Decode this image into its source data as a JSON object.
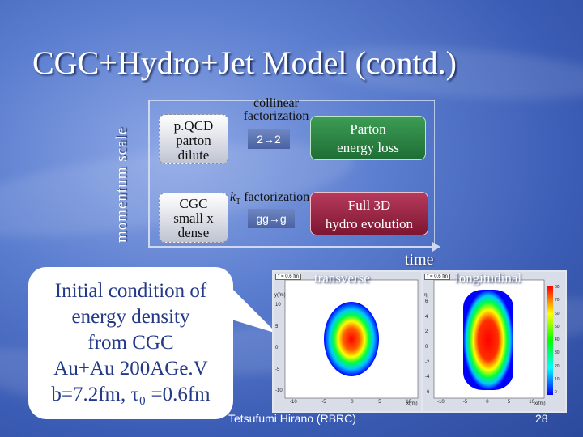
{
  "title": "CGC+Hydro+Jet Model (contd.)",
  "diagram": {
    "y_axis_label": "momentum scale",
    "x_axis_label": "time",
    "pqcd_box": [
      "p.QCD",
      "parton",
      "dilute"
    ],
    "cgc_box": [
      "CGC",
      "small x",
      "dense"
    ],
    "collinear_label": [
      "collinear",
      "factorization"
    ],
    "kt_label_k": "k",
    "kt_label_sub": "T",
    "kt_label_rest": " factorization",
    "process_22": "2→2",
    "process_ggg": "gg→g",
    "parton_loss_box": [
      "Parton",
      "energy loss"
    ],
    "hydro_box": [
      "Full 3D",
      "hydro evolution"
    ]
  },
  "callout_lines": [
    "Initial condition of",
    "energy density",
    "from CGC",
    "Au+Au 200AGe.V",
    "b=7.2fm, τ₀ =0.6fm"
  ],
  "plots": {
    "transverse_label": "transverse",
    "longitudinal_label": "longitudinal",
    "tau_tag": "τ = 0.6 fm",
    "transverse_xtick_labels": [
      "-10",
      "-5",
      "0",
      "5",
      "10"
    ],
    "transverse_ytick_labels": [
      "10",
      "5",
      "0",
      "-5",
      "-10"
    ],
    "transverse_xaxis": "x(fm)",
    "transverse_yaxis": "y(fm)",
    "longitudinal_xtick_labels": [
      "-10",
      "-5",
      "0",
      "5",
      "10"
    ],
    "longitudinal_ytick_labels": [
      "6",
      "4",
      "2",
      "0",
      "-2",
      "-4",
      "-6"
    ],
    "longitudinal_xaxis": "x(fm)",
    "longitudinal_yaxis": "η",
    "colorbar_ticks": [
      "80",
      "70",
      "60",
      "50",
      "40",
      "30",
      "20",
      "10",
      "0"
    ]
  },
  "footer": "Tetsufumi Hirano (RBRC)",
  "page_number": "28"
}
